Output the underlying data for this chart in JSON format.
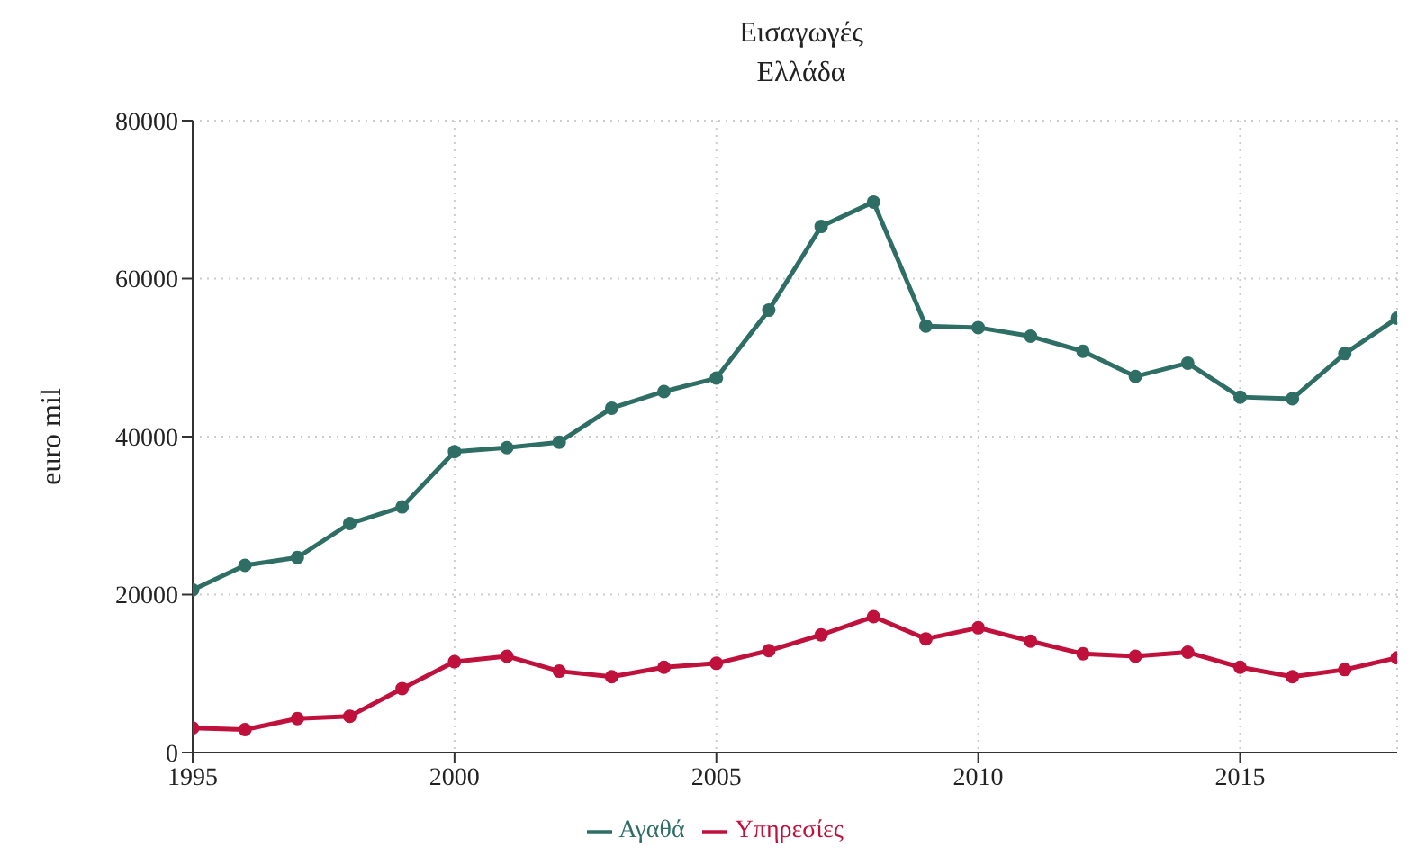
{
  "chart_data": {
    "type": "line",
    "title": "Εισαγωγές",
    "subtitle": "Ελλάδα",
    "ylabel": "euro mil",
    "x": [
      1995,
      1996,
      1997,
      1998,
      1999,
      2000,
      2001,
      2002,
      2003,
      2004,
      2005,
      2006,
      2007,
      2008,
      2009,
      2010,
      2011,
      2012,
      2013,
      2014,
      2015,
      2016,
      2017,
      2018
    ],
    "series": [
      {
        "name": "Αγαθά",
        "color": "#2e6e65",
        "values": [
          20600,
          23700,
          24700,
          29000,
          31100,
          38100,
          38600,
          39300,
          43600,
          45700,
          47400,
          56000,
          66600,
          69700,
          54000,
          53800,
          52700,
          50800,
          47600,
          49300,
          45000,
          44800,
          50500,
          55000
        ]
      },
      {
        "name": "Υπηρεσίες",
        "color": "#c0103c",
        "values": [
          3100,
          2900,
          4300,
          4600,
          8100,
          11500,
          12200,
          10300,
          9600,
          10800,
          11300,
          12900,
          14900,
          17200,
          14400,
          15800,
          14100,
          12500,
          12200,
          12700,
          10800,
          9600,
          10500,
          12000
        ]
      }
    ],
    "xlim": [
      1995,
      2018
    ],
    "xticks": [
      1995,
      2000,
      2005,
      2010,
      2015
    ],
    "ylim": [
      0,
      80000
    ],
    "yticks": [
      0,
      20000,
      40000,
      60000,
      80000
    ],
    "grid": true,
    "legend": "bottom",
    "marker": "circle",
    "line_style": "solid"
  }
}
